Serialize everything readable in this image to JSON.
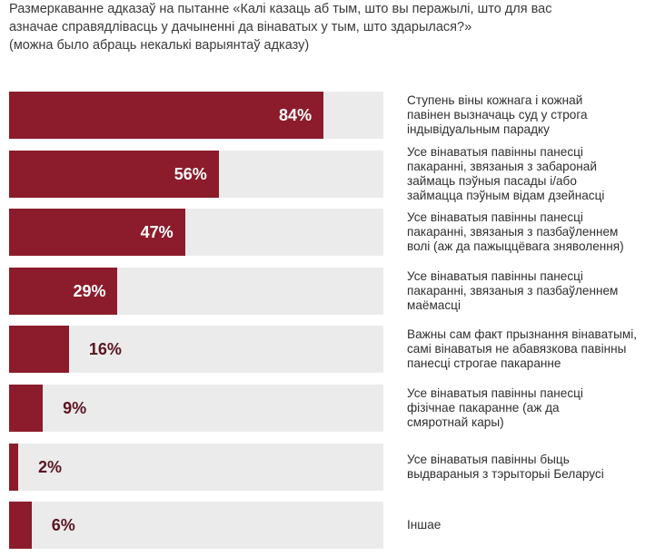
{
  "title": {
    "line1": "Размеркаванне адказаў на пытанне «Калі казаць аб тым, што вы перажылі, што для вас",
    "line2": "азначае справядлівасць у дачыненні да вінаватых у тым, што здарылася?»",
    "line3": "(можна было абраць некалькі варыянтаў адказу)"
  },
  "colors": {
    "bar": "#8c1c2b",
    "track": "#ebebeb",
    "value_outside": "#5a1520"
  },
  "chart_data": {
    "type": "bar",
    "orientation": "horizontal",
    "xlim": [
      0,
      100
    ],
    "grid": false,
    "categories": [
      "Ступень віны кожнага і кожнай павінен вызначаць суд у строга індывідуальным парадку",
      "Усе вінаватыя павінны панесці пакаранні, звязаныя з забаронай займаць пэўныя пасады і/або займацца пэўным відам дзейнасці",
      "Усе вінаватыя павінны панесці пакаранні, звязаныя з пазбаўленнем волі (аж да пажыццёвага зняволення)",
      "Усе вінаватыя павінны панесці пакаранні, звязаныя з пазбаўленнем маёмасці",
      "Важны сам факт прызнання вінаватымі, самі вінаватыя не абавязкова павінны панесці строгае пакаранне",
      "Усе вінаватыя павінны панесці фізічнае пакаранне (аж да смяротнай кары)",
      "Усе вінаватыя павінны быць выдвараныя з тэрыторыі Беларусі",
      "Іншае"
    ],
    "values": [
      84,
      56,
      47,
      29,
      16,
      9,
      2,
      6
    ],
    "value_labels": [
      "84%",
      "56%",
      "47%",
      "29%",
      "16%",
      "9%",
      "2%",
      "6%"
    ],
    "label_lines": [
      [
        "Ступень віны кожнага і кожнай",
        "павінен вызначаць суд у строга",
        "індывідуальным парадку"
      ],
      [
        "Усе вінаватыя павінны панесці",
        "пакаранні, звязаныя з забаронай",
        "займаць пэўныя пасады і/або",
        "займацца пэўным відам дзейнасці"
      ],
      [
        "Усе вінаватыя павінны панесці",
        "пакаранні, звязаныя з пазбаўленнем",
        "волі (аж да пажыццёвага зняволення)"
      ],
      [
        "Усе вінаватыя павінны панесці",
        "пакаранні, звязаныя з пазбаўленнем",
        "маёмасці"
      ],
      [
        "Важны сам факт прызнання вінаватымі,",
        "самі вінаватыя не абавязкова павінны",
        "панесці строгае пакаранне"
      ],
      [
        "Усе вінаватыя павінны панесці",
        "фізічнае пакаранне (аж да",
        "смяротнай кары)"
      ],
      [
        "Усе вінаватыя павінны быць",
        "выдвараныя з тэрыторыі Беларусі"
      ],
      [
        "Іншае"
      ]
    ]
  }
}
